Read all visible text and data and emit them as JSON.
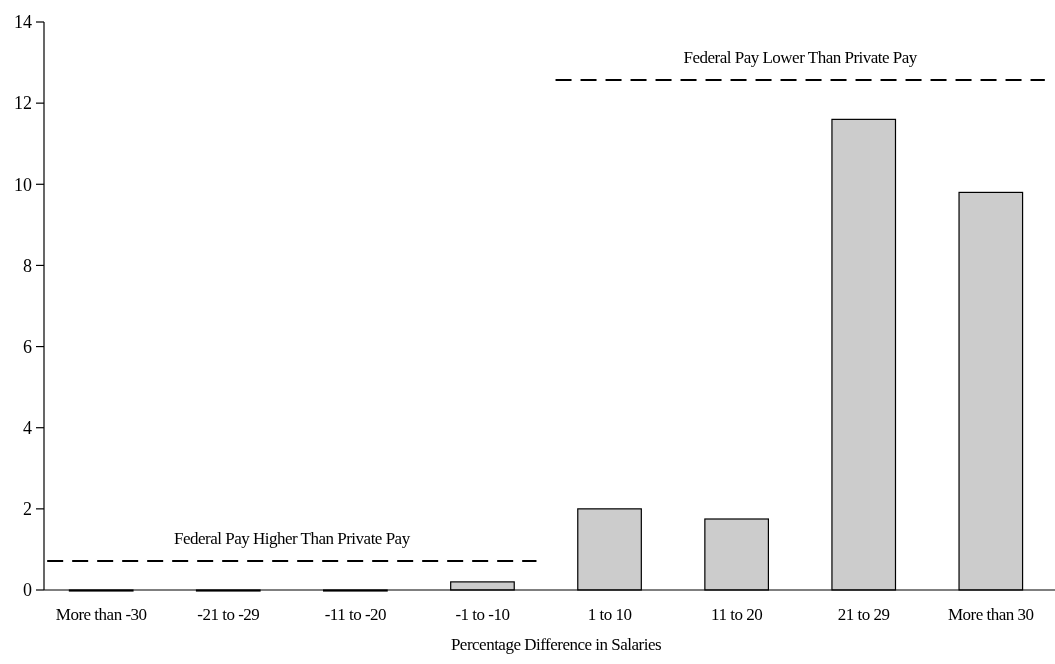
{
  "chart_data": {
    "type": "bar",
    "xlabel": "Percentage Difference in Salaries",
    "categories": [
      "More than -30",
      "-21 to -29",
      "-11 to -20",
      "-1 to -10",
      "1 to 10",
      "11 to 20",
      "21 to 29",
      "More than 30"
    ],
    "values": [
      0,
      0,
      0,
      0.2,
      2.0,
      1.75,
      11.6,
      9.8
    ],
    "color": "#cccccc",
    "ylim": [
      0,
      14
    ],
    "yticks": [
      0,
      2,
      4,
      6,
      8,
      10,
      12,
      14
    ],
    "grid": false,
    "annotations": [
      "Federal Pay Higher Than Private Pay",
      "Federal Pay Lower Than Private Pay"
    ]
  }
}
